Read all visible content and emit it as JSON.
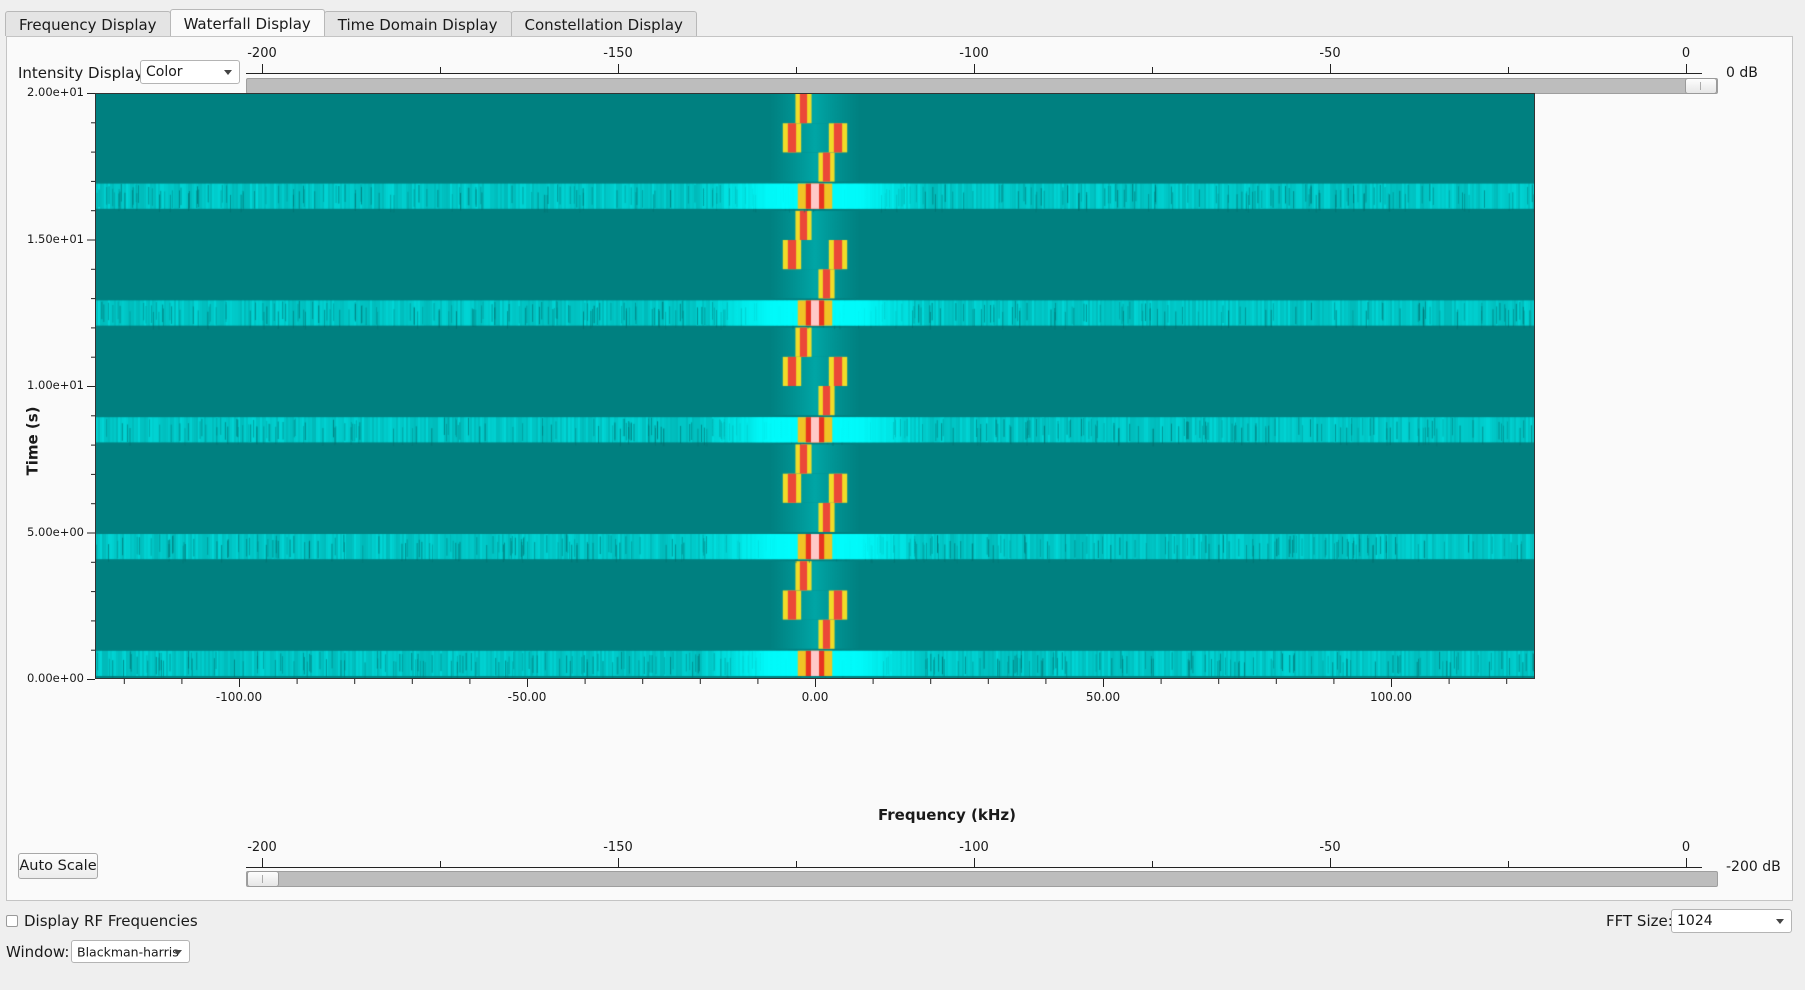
{
  "tabs": [
    {
      "label": "Frequency Display",
      "active": false
    },
    {
      "label": "Waterfall Display",
      "active": true
    },
    {
      "label": "Time Domain Display",
      "active": false
    },
    {
      "label": "Constellation Display",
      "active": false
    }
  ],
  "intensity": {
    "label": "Intensity Display:",
    "value": "Color"
  },
  "top_scale": {
    "ticks": [
      "-200",
      "-150",
      "-100",
      "-50",
      "0"
    ],
    "value_label": "0 dB",
    "level_db": 0
  },
  "bottom_scale": {
    "ticks": [
      "-200",
      "-150",
      "-100",
      "-50",
      "0"
    ],
    "value_label": "-200 dB",
    "level_db": -200
  },
  "auto_scale_button": "Auto Scale",
  "display_rf": {
    "label": "Display RF Frequencies",
    "checked": false
  },
  "fft_size": {
    "label": "FFT Size:",
    "value": "1024"
  },
  "window": {
    "label": "Window:",
    "value": "Blackman-harris"
  },
  "colors": {
    "background_teal": "#008080",
    "bright_cyan": "#00ffff",
    "signal_red": "#e62010",
    "signal_yellow": "#f0d020"
  },
  "chart_data": {
    "type": "heatmap",
    "xlabel": "Frequency (kHz)",
    "ylabel": "Time (s)",
    "x_ticks": [
      "-100.00",
      "-50.00",
      "0.00",
      "50.00",
      "100.00"
    ],
    "y_ticks": [
      "2.00e+01",
      "1.50e+01",
      "1.00e+01",
      "5.00e+00",
      "0.00e+00"
    ],
    "xlim": [
      -125,
      125
    ],
    "ylim": [
      0,
      20
    ]
  }
}
